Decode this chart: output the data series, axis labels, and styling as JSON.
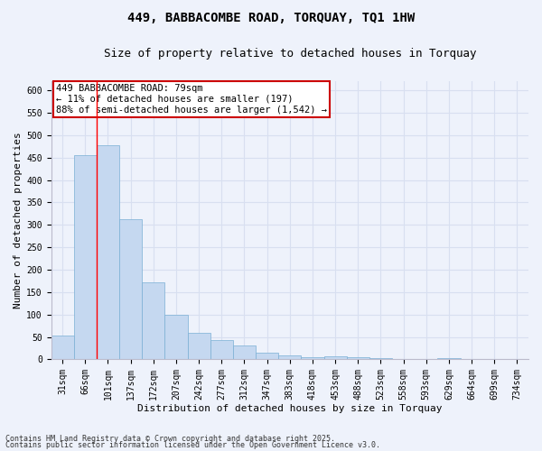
{
  "title": "449, BABBACOMBE ROAD, TORQUAY, TQ1 1HW",
  "subtitle": "Size of property relative to detached houses in Torquay",
  "xlabel": "Distribution of detached houses by size in Torquay",
  "ylabel": "Number of detached properties",
  "categories": [
    "31sqm",
    "66sqm",
    "101sqm",
    "137sqm",
    "172sqm",
    "207sqm",
    "242sqm",
    "277sqm",
    "312sqm",
    "347sqm",
    "383sqm",
    "418sqm",
    "453sqm",
    "488sqm",
    "523sqm",
    "558sqm",
    "593sqm",
    "629sqm",
    "664sqm",
    "699sqm",
    "734sqm"
  ],
  "values": [
    53,
    455,
    478,
    312,
    172,
    100,
    59,
    42,
    31,
    15,
    8,
    5,
    7,
    5,
    2,
    0,
    0,
    2,
    0,
    0,
    0
  ],
  "bar_color": "#c5d8f0",
  "bar_edge_color": "#7aafd4",
  "background_color": "#eef2fb",
  "grid_color": "#d8dff0",
  "annotation_text": "449 BABBACOMBE ROAD: 79sqm\n← 11% of detached houses are smaller (197)\n88% of semi-detached houses are larger (1,542) →",
  "annotation_box_color": "#cc0000",
  "property_line_x": 1.5,
  "ylim": [
    0,
    620
  ],
  "yticks": [
    0,
    50,
    100,
    150,
    200,
    250,
    300,
    350,
    400,
    450,
    500,
    550,
    600
  ],
  "footer_line1": "Contains HM Land Registry data © Crown copyright and database right 2025.",
  "footer_line2": "Contains public sector information licensed under the Open Government Licence v3.0.",
  "title_fontsize": 10,
  "subtitle_fontsize": 9,
  "tick_fontsize": 7,
  "label_fontsize": 8,
  "annotation_fontsize": 7.5,
  "footer_fontsize": 6
}
